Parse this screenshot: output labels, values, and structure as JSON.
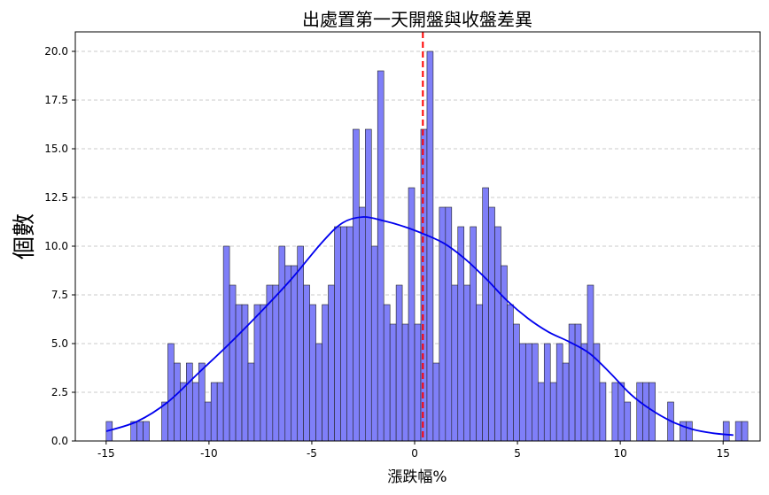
{
  "chart_data": {
    "type": "bar",
    "title": "出處置第一天開盤與收盤差異",
    "xlabel": "漲跌幅%",
    "ylabel": "個數",
    "xlim": [
      -16.5,
      16.8
    ],
    "ylim": [
      0,
      21
    ],
    "xticks": [
      -15,
      -10,
      -5,
      0,
      5,
      10,
      15
    ],
    "yticks": [
      0.0,
      2.5,
      5.0,
      7.5,
      10.0,
      12.5,
      15.0,
      17.5,
      20.0
    ],
    "grid": "y-dashed",
    "bin_width": 0.3,
    "bins_start": -15,
    "counts": [
      1,
      0,
      0,
      0,
      1,
      1,
      1,
      0,
      0,
      2,
      5,
      4,
      3,
      4,
      3,
      4,
      2,
      3,
      3,
      10,
      8,
      7,
      7,
      4,
      7,
      7,
      8,
      8,
      10,
      9,
      9,
      10,
      8,
      7,
      5,
      7,
      8,
      11,
      11,
      11,
      16,
      12,
      16,
      10,
      19,
      7,
      6,
      8,
      6,
      13,
      6,
      16,
      20,
      4,
      12,
      12,
      8,
      11,
      8,
      11,
      7,
      13,
      12,
      11,
      9,
      7,
      6,
      5,
      5,
      5,
      3,
      5,
      3,
      5,
      4,
      6,
      6,
      5,
      8,
      5,
      3,
      0,
      3,
      3,
      2,
      0,
      3,
      3,
      3,
      0,
      0,
      2,
      0,
      1,
      1,
      0,
      0,
      0,
      0,
      0,
      1,
      0,
      1,
      1
    ],
    "vline": {
      "x": 0.4,
      "color": "#ff0000",
      "style": "dashed"
    },
    "kde": {
      "x": [
        -15,
        -13.5,
        -12,
        -10.5,
        -9,
        -7.5,
        -6,
        -4.5,
        -3.5,
        -2.5,
        -1.5,
        -0.5,
        0.5,
        1.5,
        2.5,
        3.5,
        4.5,
        5.5,
        6.5,
        7.5,
        8.5,
        9.5,
        10.5,
        11.5,
        12.5,
        13.5,
        14.5,
        15.5
      ],
      "y": [
        0.5,
        1.0,
        2.0,
        3.5,
        5.0,
        6.6,
        8.3,
        10.2,
        11.2,
        11.5,
        11.3,
        11.0,
        10.6,
        10.1,
        9.3,
        8.3,
        7.2,
        6.3,
        5.6,
        5.1,
        4.5,
        3.5,
        2.4,
        1.6,
        1.0,
        0.6,
        0.4,
        0.3
      ]
    },
    "colors": {
      "bar_fill": "#7f7ff8",
      "bar_edge": "#222222",
      "kde_line": "#0000ee",
      "grid": "#bbbbbb"
    }
  }
}
